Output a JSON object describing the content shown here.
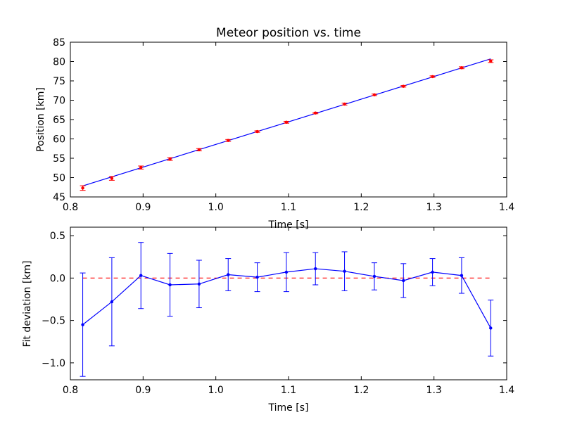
{
  "colors": {
    "fit_line": "#0000ff",
    "measured_points": "#ff0000",
    "zero_line": "#ff0000",
    "deviation_series": "#0000ff"
  },
  "chart_data": [
    {
      "type": "scatter",
      "title": "Meteor position vs. time",
      "xlabel": "Time [s]",
      "ylabel": "Position [km]",
      "xlim": [
        0.8,
        1.4
      ],
      "ylim": [
        45,
        85
      ],
      "xticks": [
        "0.8",
        "0.9",
        "1.0",
        "1.1",
        "1.2",
        "1.3",
        "1.4"
      ],
      "yticks": [
        "45",
        "50",
        "55",
        "60",
        "65",
        "70",
        "75",
        "80",
        "85"
      ],
      "grid": false,
      "series": [
        {
          "kind": "errorbar-points",
          "x": [
            0.817,
            0.857,
            0.897,
            0.937,
            0.977,
            1.017,
            1.057,
            1.097,
            1.137,
            1.177,
            1.218,
            1.258,
            1.298,
            1.338,
            1.378
          ],
          "y": [
            47.3,
            49.8,
            52.6,
            54.8,
            57.2,
            59.6,
            61.9,
            64.3,
            66.7,
            69.0,
            71.4,
            73.6,
            76.1,
            78.4,
            80.1
          ],
          "yerr": [
            0.6,
            0.5,
            0.4,
            0.35,
            0.3,
            0.25,
            0.2,
            0.25,
            0.2,
            0.25,
            0.2,
            0.2,
            0.2,
            0.25,
            0.35
          ]
        },
        {
          "kind": "fit-line",
          "x": [
            0.817,
            1.378
          ],
          "y": [
            47.85,
            80.7
          ]
        }
      ]
    },
    {
      "type": "line",
      "title": "",
      "xlabel": "Time [s]",
      "ylabel": "Fit deviation [km]",
      "xlim": [
        0.8,
        1.4
      ],
      "ylim": [
        -1.2,
        0.6
      ],
      "xticks": [
        "0.8",
        "0.9",
        "1.0",
        "1.1",
        "1.2",
        "1.3",
        "1.4"
      ],
      "yticks": [
        "−1.0",
        "−0.5",
        "0.0",
        "0.5"
      ],
      "ytick_values": [
        -1.0,
        -0.5,
        0.0,
        0.5
      ],
      "grid": false,
      "reference_line": 0.0,
      "series": [
        {
          "kind": "errorbar-line",
          "x": [
            0.817,
            0.857,
            0.897,
            0.937,
            0.977,
            1.017,
            1.057,
            1.097,
            1.137,
            1.177,
            1.218,
            1.258,
            1.298,
            1.338,
            1.378
          ],
          "y": [
            -0.55,
            -0.28,
            0.03,
            -0.08,
            -0.07,
            0.04,
            0.01,
            0.07,
            0.11,
            0.08,
            0.02,
            -0.03,
            0.07,
            0.03,
            -0.59
          ],
          "yerr": [
            0.61,
            0.52,
            0.39,
            0.37,
            0.28,
            0.19,
            0.17,
            0.23,
            0.19,
            0.23,
            0.16,
            0.2,
            0.16,
            0.21,
            0.33
          ]
        }
      ]
    }
  ]
}
